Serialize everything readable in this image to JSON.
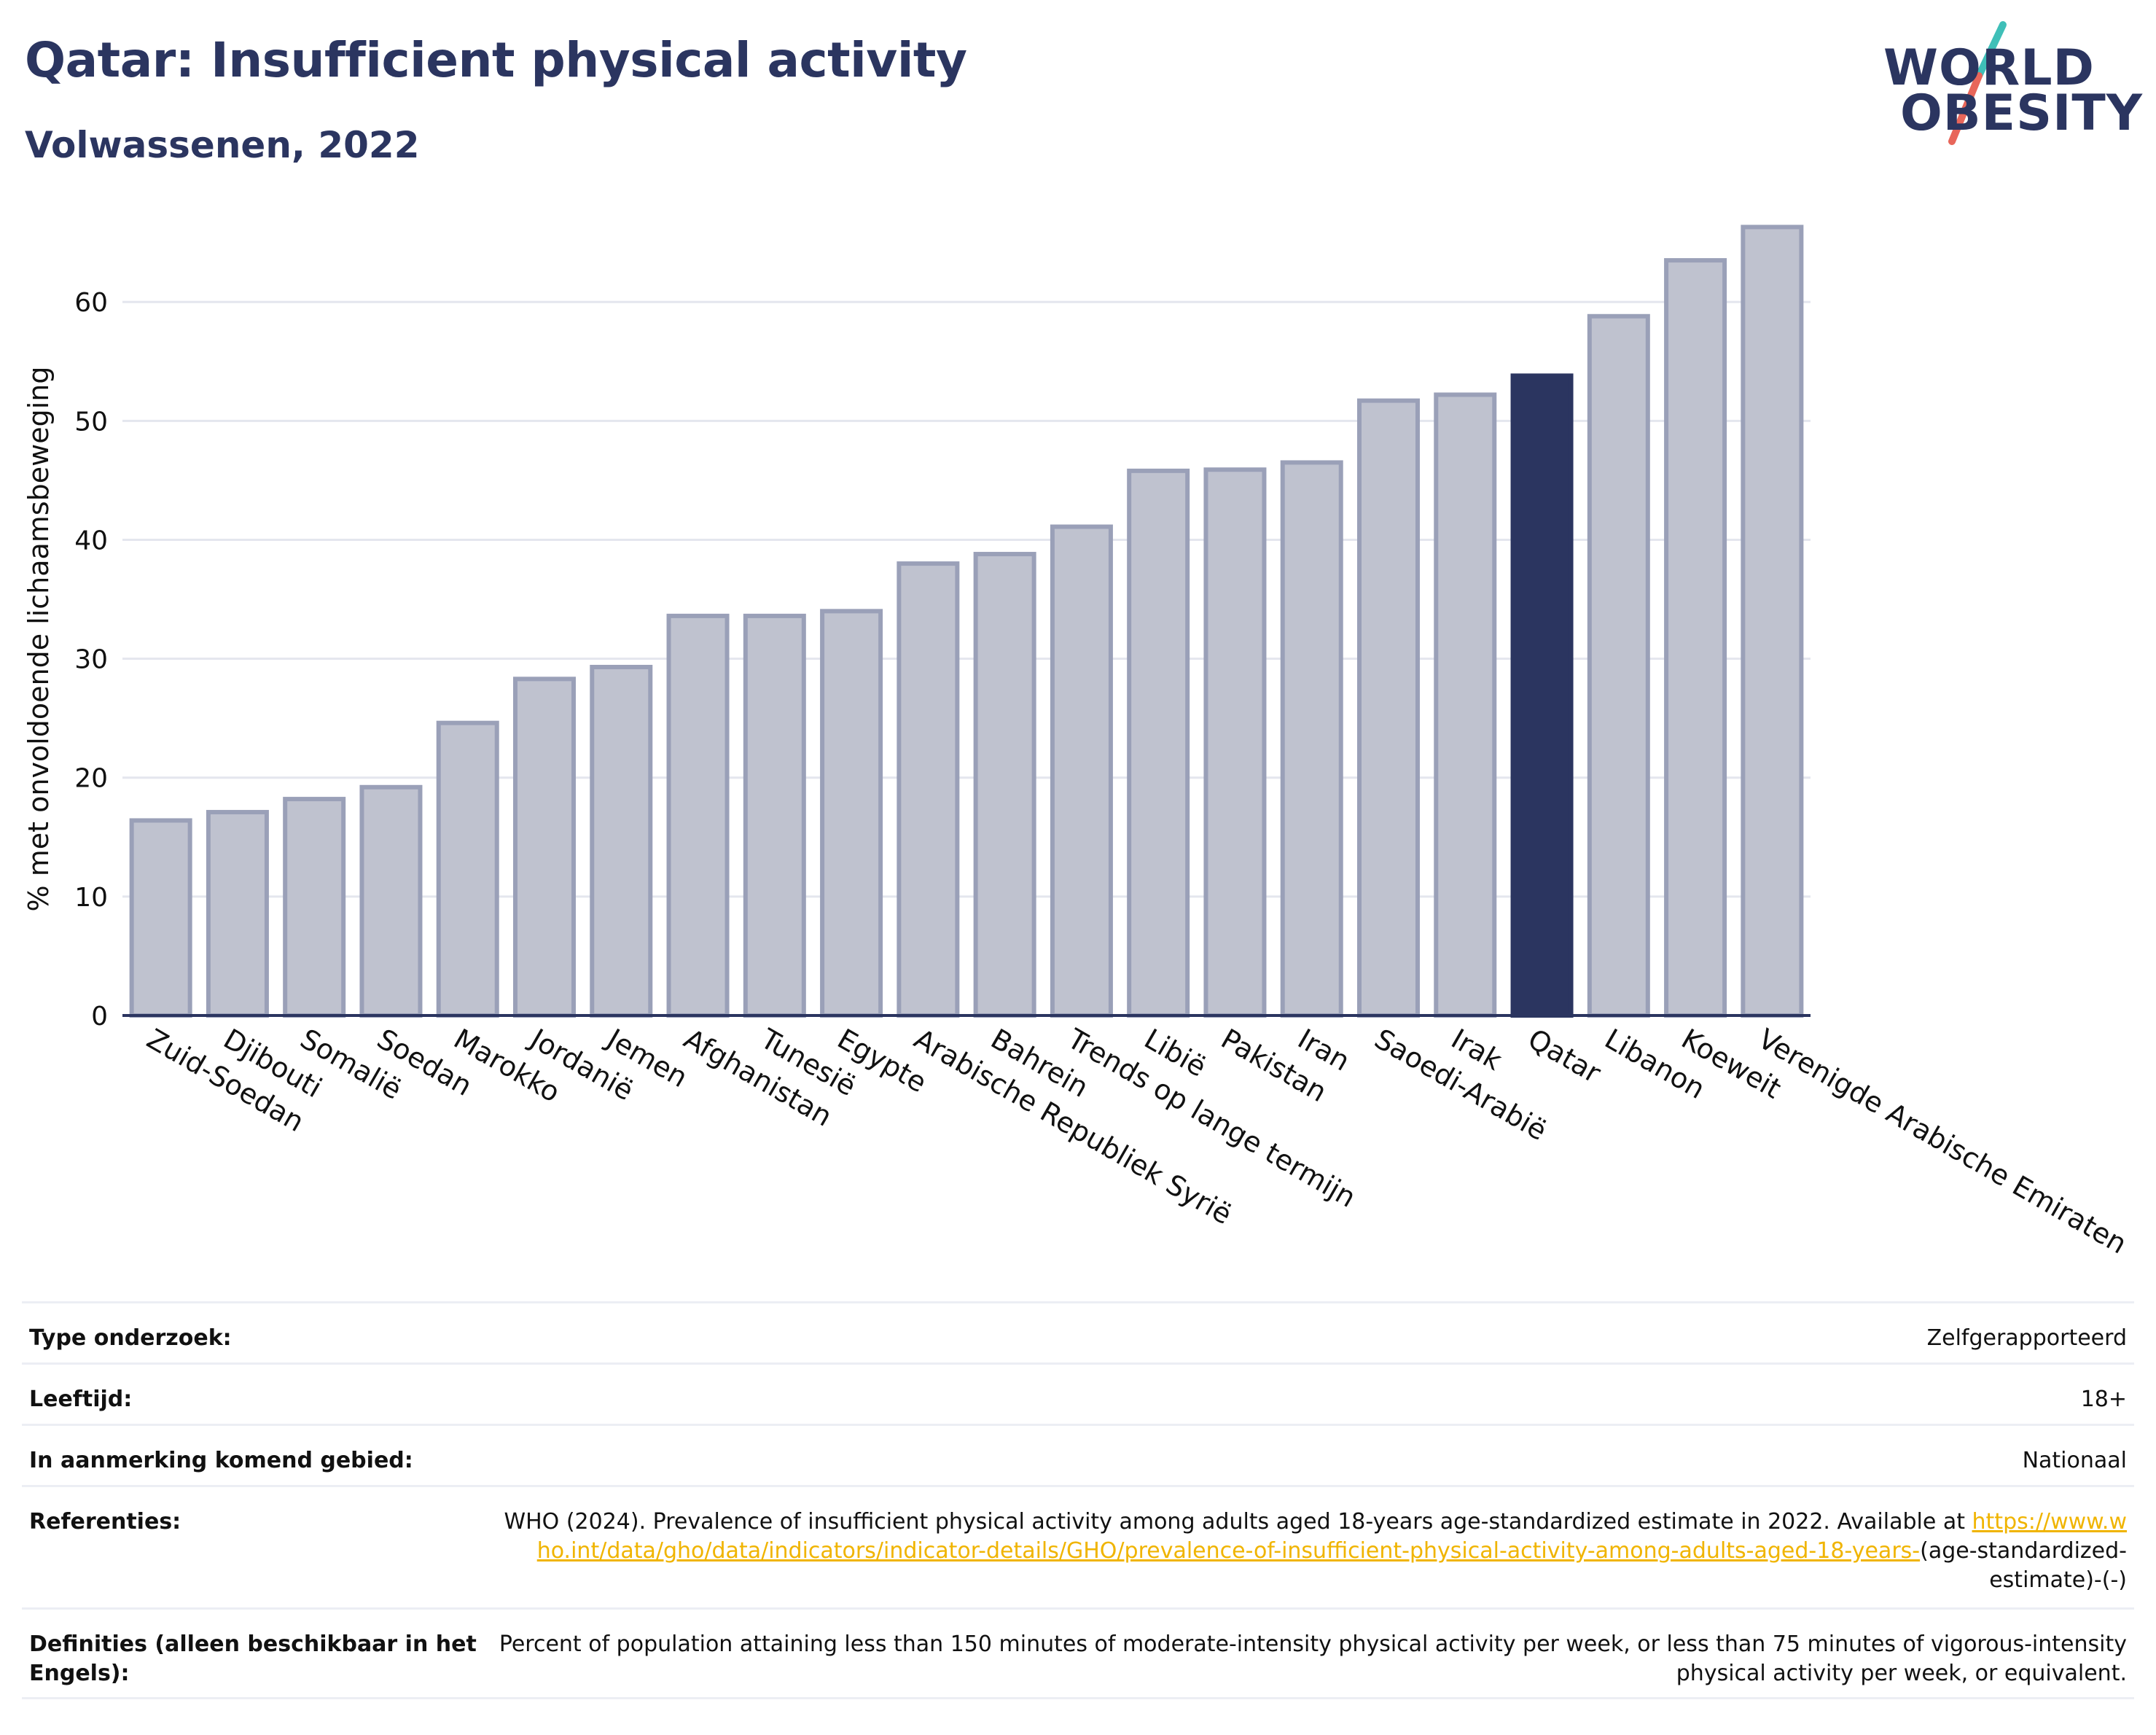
{
  "header": {
    "title": "Qatar: Insufficient physical activity",
    "subtitle": "Volwassenen, 2022"
  },
  "logo": {
    "line1": "WORLD",
    "line2": "OBESITY",
    "colors": {
      "text": "#2b3560",
      "slash_top": "#3fbfb8",
      "slash_bottom": "#e8665a"
    }
  },
  "colors": {
    "bar_default": "#bfc2cf",
    "bar_border": "#9aa0b8",
    "bar_highlight": "#2b3560",
    "grid": "#e4e6ee",
    "axis": "#2b3560"
  },
  "chart_data": {
    "type": "bar",
    "title": "",
    "xlabel": "",
    "ylabel": "% met onvoldoende lichaamsbeweging",
    "ylim": [
      0,
      67
    ],
    "yticks": [
      0,
      10,
      20,
      30,
      40,
      50,
      60
    ],
    "grid": true,
    "highlight": "Qatar",
    "categories": [
      "Zuid-Soedan",
      "Djibouti",
      "Somalië",
      "Soedan",
      "Marokko",
      "Jordanië",
      "Jemen",
      "Afghanistan",
      "Tunesië",
      "Egypte",
      "Arabische Republiek Syrië",
      "Bahrein",
      "Trends op lange termijn",
      "Libië",
      "Pakistan",
      "Iran",
      "Saoedi-Arabië",
      "Irak",
      "Qatar",
      "Libanon",
      "Koeweit",
      "Verenigde Arabische Emiraten"
    ],
    "values": [
      16.4,
      17.1,
      18.2,
      19.2,
      24.6,
      28.3,
      29.3,
      33.6,
      33.6,
      34.0,
      38.0,
      38.8,
      41.1,
      45.8,
      45.9,
      46.5,
      51.7,
      52.2,
      53.8,
      58.8,
      63.5,
      66.3
    ]
  },
  "metadata": {
    "survey_type": {
      "label": "Type onderzoek:",
      "value": "Zelfgerapporteerd"
    },
    "age": {
      "label": "Leeftijd:",
      "value": "18+"
    },
    "area": {
      "label": "In aanmerking komend gebied:",
      "value": "Nationaal"
    },
    "references": {
      "label": "Referenties:",
      "text": "WHO (2024). Prevalence of insufficient physical activity among adults aged 18-years age-standardized estimate in 2022. Available at",
      "link": "https://www.who.int/data/gho/data/indicators/indicator-details/GHO/prevalence-of-insufficient-physical-activity-among-adults-aged-18-years-",
      "suffix": "(age-standardized-estimate)-(-)"
    },
    "definitions": {
      "label": "Definities (alleen beschikbaar in het Engels):",
      "value": "Percent of population attaining less than 150 minutes of moderate-intensity physical activity per week, or less than 75 minutes of vigorous-intensity physical activity per week, or equivalent."
    }
  }
}
